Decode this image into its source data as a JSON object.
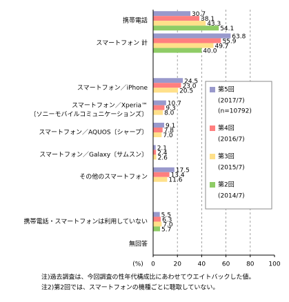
{
  "chart_data": {
    "type": "hbar",
    "categories": [
      "携帯電話",
      "スマートフォン 計",
      null,
      "スマートフォン／iPhone",
      [
        "スマートフォン／Xperia™",
        "〔ソニーモバイルコミュニケーションズ〕"
      ],
      "スマートフォン／AQUOS〔シャープ〕",
      "スマートフォン／Galaxy〔サムスン〕",
      "その他のスマートフォン",
      null,
      "携帯電話・スマートフォンは利用していない",
      "無回答"
    ],
    "series": [
      {
        "name": "第5回",
        "period": "(2017/7)",
        "sample": "(n=10792)",
        "color": "#9999cc",
        "values": [
          30.7,
          63.8,
          null,
          24.5,
          10.7,
          9.1,
          2.1,
          17.5,
          null,
          5.5,
          null
        ],
        "value_labels": [
          "30.7",
          "63.8",
          null,
          "24.5",
          "10.7",
          "9.1",
          "2.1",
          "17.5",
          null,
          "5.5",
          null
        ]
      },
      {
        "name": "第4回",
        "period": "(2016/7)",
        "color": "#ff7f7f",
        "values": [
          38.1,
          55.9,
          null,
          23.0,
          9.3,
          7.8,
          2.4,
          13.4,
          null,
          6.3,
          null
        ],
        "value_labels": [
          "38.1",
          "55.9",
          null,
          "23.0",
          "9.3",
          "7.8",
          "2.4",
          "13.4",
          null,
          "6.3",
          null
        ]
      },
      {
        "name": "第3回",
        "period": "(2015/7)",
        "color": "#ffe08a",
        "values": [
          43.3,
          49.7,
          null,
          20.5,
          8.0,
          7.0,
          2.6,
          11.6,
          null,
          7.0,
          null
        ],
        "value_labels": [
          "43.3",
          "49.7",
          null,
          "20.5",
          "8.0",
          "7.0",
          "2.6",
          "11.6",
          null,
          "7.0",
          null
        ]
      },
      {
        "name": "第2回",
        "period": "(2014/7)",
        "color": "#8fcc66",
        "values": [
          54.1,
          40.0,
          null,
          null,
          null,
          null,
          null,
          null,
          null,
          5.7,
          null
        ],
        "value_labels": [
          "54.1",
          "40.0",
          null,
          null,
          null,
          null,
          null,
          null,
          null,
          "5.7",
          null
        ]
      }
    ],
    "xlim": [
      0,
      100
    ],
    "xticks": [
      0,
      20,
      40,
      60,
      80,
      100
    ],
    "xlabel": "(%)",
    "grid": true,
    "notes": [
      "注)過去調査は、今回調査の性年代構成比にあわせてウエイトバックした値。",
      "注2)第2回では、スマートフォンの機種ごとに聴取していない。"
    ]
  }
}
